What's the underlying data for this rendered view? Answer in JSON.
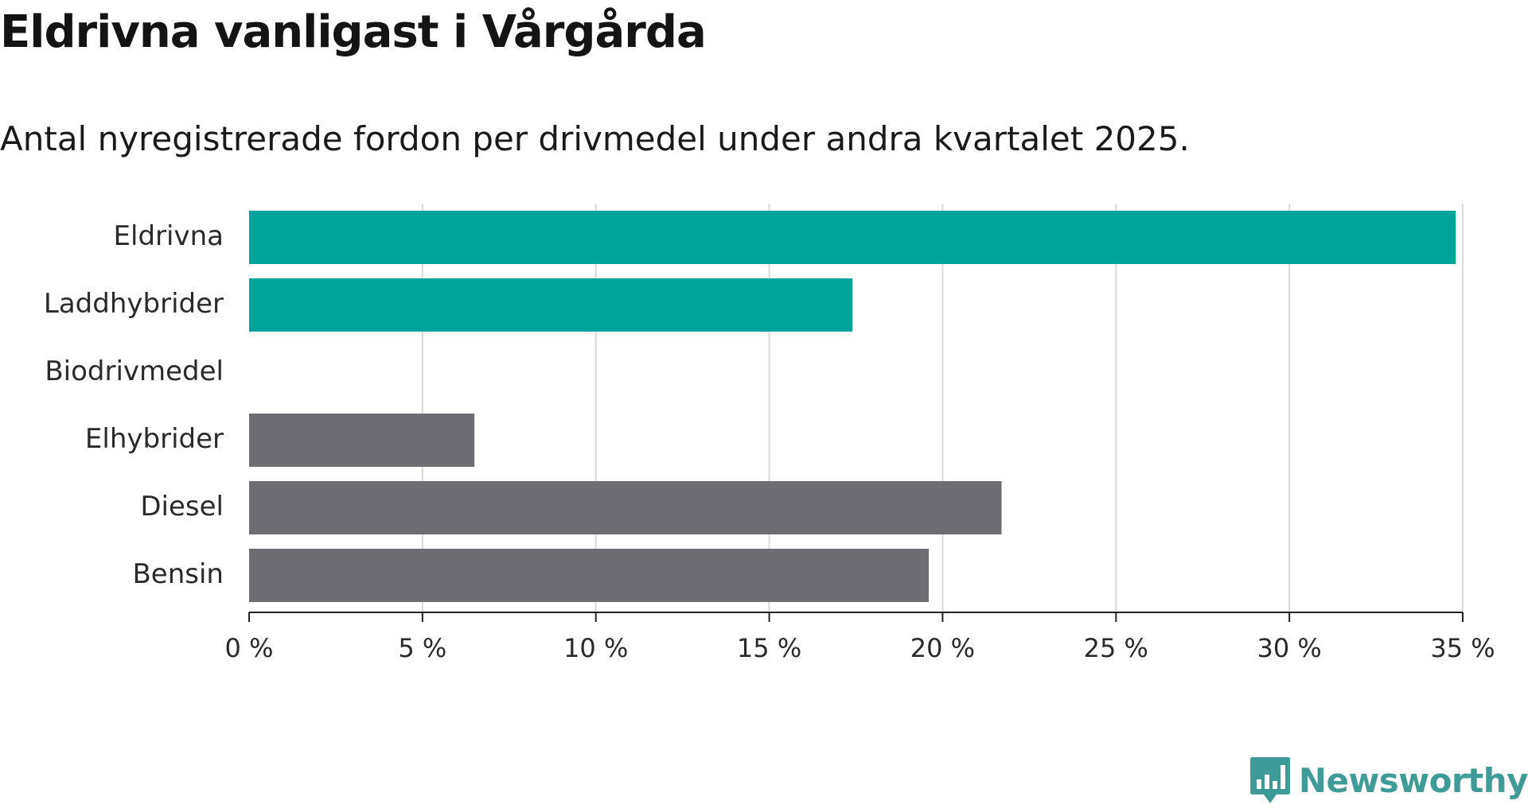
{
  "chart_data": {
    "type": "bar",
    "orientation": "horizontal",
    "title": "Eldrivna vanligast i Vårgårda",
    "subtitle": "Antal nyregistrerade fordon per drivmedel under andra kvartalet 2025.",
    "categories": [
      "Eldrivna",
      "Laddhybrider",
      "Biodrivmedel",
      "Elhybrider",
      "Diesel",
      "Bensin"
    ],
    "values": [
      34.8,
      17.4,
      0,
      6.5,
      21.7,
      19.6
    ],
    "colors": [
      "#00a49a",
      "#00a49a",
      "#00a49a",
      "#6d6d73",
      "#6d6d73",
      "#6d6d73"
    ],
    "xlim": [
      0,
      35
    ],
    "xticks": [
      0,
      5,
      10,
      15,
      20,
      25,
      30,
      35
    ],
    "xtick_labels": [
      "0 %",
      "5 %",
      "10 %",
      "15 %",
      "20 %",
      "25 %",
      "30 %",
      "35 %"
    ],
    "xlabel": "",
    "ylabel": "",
    "grid": "vertical",
    "colors_meta": {
      "highlight": "#00a49a",
      "base": "#6d6d73",
      "grid": "#d9d9d9",
      "axis": "#222222"
    }
  },
  "logo": {
    "text": "Newsworthy",
    "color": "#3f9b95",
    "icon": "bar-chart-speech-icon"
  }
}
